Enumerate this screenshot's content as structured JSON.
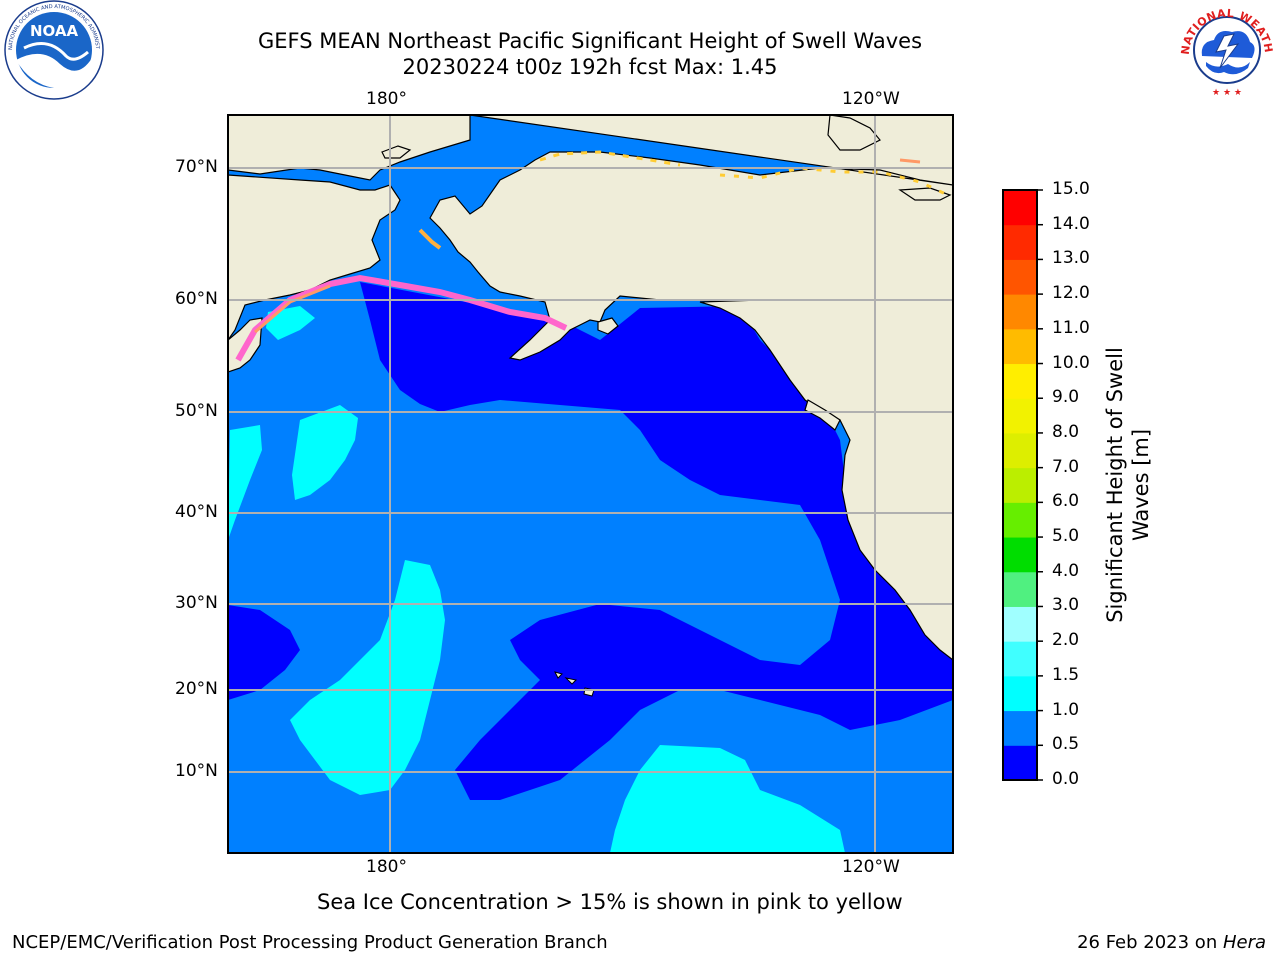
{
  "header": {
    "title_line1": "GEFS MEAN Northeast Pacific Significant Height of Swell Waves",
    "title_line2": "20230224 t00z 192h fcst   Max: 1.45"
  },
  "logos": {
    "noaa_text": "NOAA",
    "noaa_ring_text": "NATIONAL OCEANIC AND ATMOSPHERIC ADMINISTRATION · U.S. DEPARTMENT OF COMMERCE ·",
    "nws_ring_text": "NATIONAL WEATHER SERVICE"
  },
  "map": {
    "top_lon_labels": [
      "180°",
      "120°W"
    ],
    "bottom_lon_labels": [
      "180°",
      "120°W"
    ],
    "lat_labels": [
      "70°N",
      "60°N",
      "50°N",
      "40°N",
      "30°N",
      "20°N",
      "10°N"
    ],
    "note": "Sea Ice Concentration > 15% is shown in pink to yellow"
  },
  "colorbar": {
    "label_line1": "Significant Height of Swell",
    "label_line2": "Waves [m]",
    "ticks": [
      "15.0",
      "14.0",
      "13.0",
      "12.0",
      "11.0",
      "10.0",
      "9.0",
      "8.0",
      "7.0",
      "6.0",
      "5.0",
      "4.0",
      "3.0",
      "2.0",
      "1.5",
      "1.0",
      "0.5",
      "0.0"
    ],
    "colors_bottom_to_top": [
      "#0000ff",
      "#0080ff",
      "#00ffff",
      "#40ffff",
      "#a0ffff",
      "#50f080",
      "#00dd00",
      "#66ee00",
      "#bbee00",
      "#ddee00",
      "#f2f200",
      "#ffee00",
      "#ffbb00",
      "#ff8800",
      "#ff5500",
      "#ff2a00",
      "#ff0000"
    ]
  },
  "footer": {
    "left": "NCEP/EMC/Verification Post Processing Product Generation Branch",
    "date": "26 Feb 2023 on ",
    "machine": "Hera"
  }
}
